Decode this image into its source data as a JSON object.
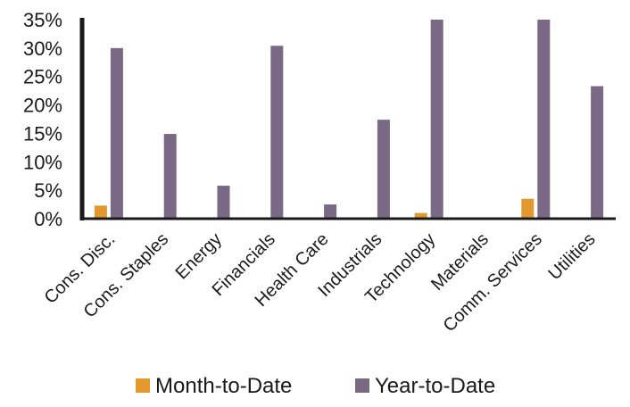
{
  "chart_data": {
    "type": "bar",
    "title": "",
    "xlabel": "",
    "ylabel": "",
    "categories": [
      "Cons. Disc.",
      "Cons. Staples",
      "Energy",
      "Financials",
      "Health Care",
      "Industrials",
      "Technology",
      "Materials",
      "Comm. Services",
      "Utilities"
    ],
    "series": [
      {
        "name": "Month-to-Date",
        "color": "#E1992E",
        "values": [
          2.3,
          0.0,
          0.0,
          0.0,
          0.0,
          0.0,
          1.0,
          0.0,
          3.5,
          0.0
        ]
      },
      {
        "name": "Year-to-Date",
        "color": "#7A6985",
        "values": [
          30.0,
          14.9,
          5.8,
          30.4,
          2.5,
          17.4,
          35.0,
          0.0,
          35.0,
          23.3
        ]
      }
    ],
    "ylim": [
      0,
      35
    ],
    "yticks": [
      0,
      5,
      10,
      15,
      20,
      25,
      30,
      35
    ],
    "ytick_labels": [
      "0%",
      "5%",
      "10%",
      "15%",
      "20%",
      "25%",
      "30%",
      "35%"
    ],
    "grid": false,
    "legend": "bottom"
  }
}
